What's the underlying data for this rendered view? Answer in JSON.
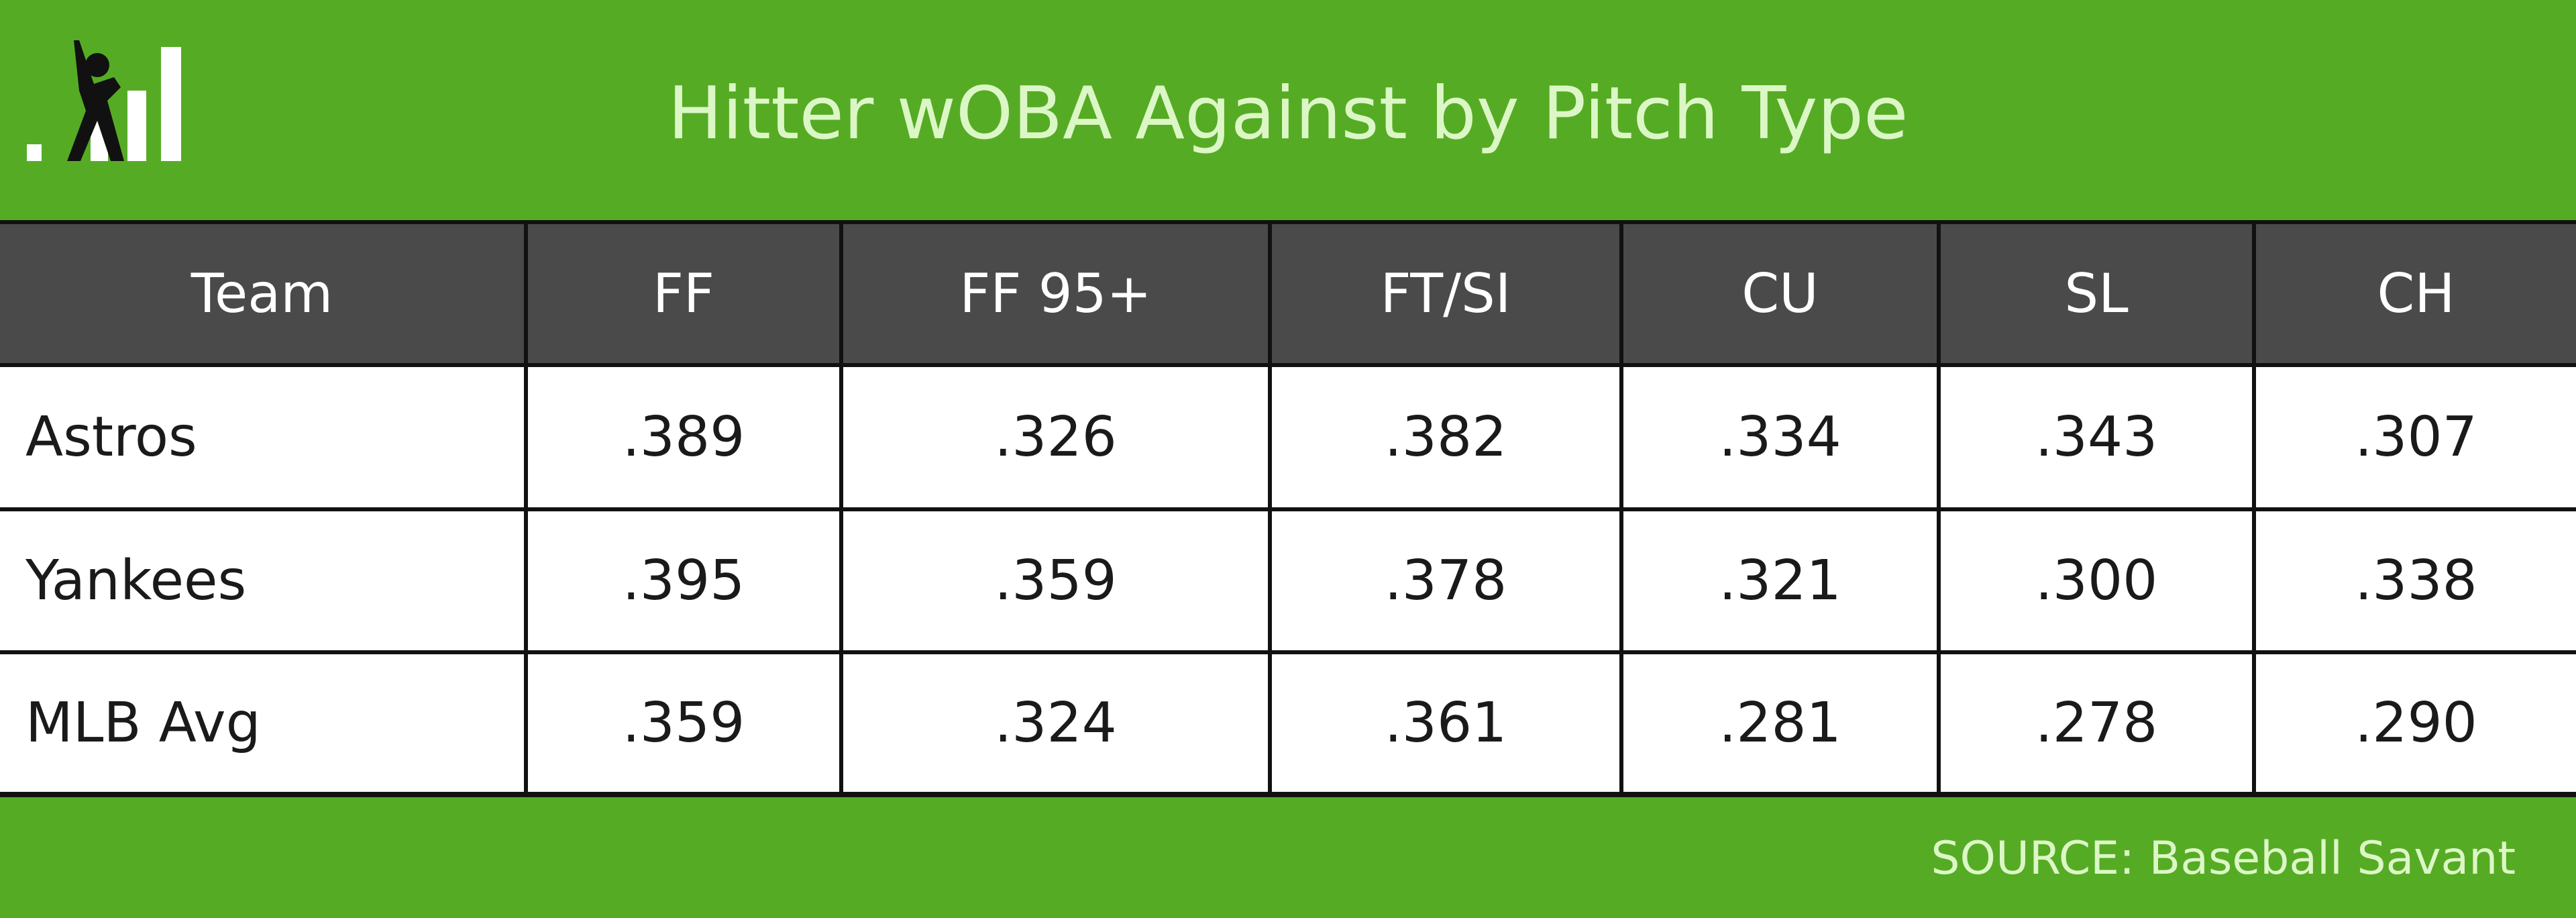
{
  "header": {
    "title": "Hitter wOBA Against by Pitch Type"
  },
  "table": {
    "columns": [
      "Team",
      "FF",
      "FF 95+",
      "FT/SI",
      "CU",
      "SL",
      "CH"
    ],
    "rows": [
      [
        "Astros",
        ".389",
        ".326",
        ".382",
        ".334",
        ".343",
        ".307"
      ],
      [
        "Yankees",
        ".395",
        ".359",
        ".378",
        ".321",
        ".300",
        ".338"
      ],
      [
        "MLB Avg",
        ".359",
        ".324",
        ".361",
        ".281",
        ".278",
        ".290"
      ]
    ]
  },
  "footer": {
    "source": "SOURCE: Baseball Savant"
  }
}
